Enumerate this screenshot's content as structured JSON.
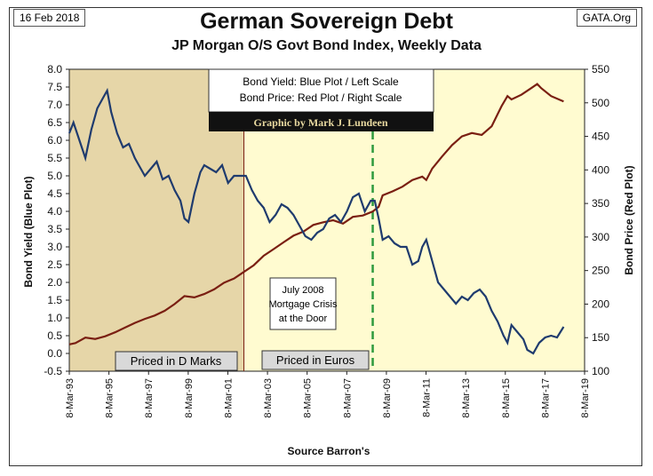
{
  "header": {
    "date": "16 Feb 2018",
    "source_tag": "GATA.Org",
    "title": "German Sovereign Debt",
    "subtitle": "JP Morgan O/S Govt Bond Index, Weekly Data"
  },
  "legend": {
    "line1": "Bond Yield: Blue Plot / Left Scale",
    "line2": "Bond Price: Red Plot / Right Scale",
    "credit": "Graphic by Mark J. Lundeen"
  },
  "annotations": {
    "crisis_line1": "July 2008",
    "crisis_line2": "Mortgage Crisis",
    "crisis_line3": "at the Door",
    "dmarks": "Priced in D Marks",
    "euros": "Priced in Euros"
  },
  "colors": {
    "dm_shade": "#e6d6a8",
    "euro_shade": "#fffbd0",
    "yield": "#1f3b6e",
    "price": "#7a1f12",
    "crisis_line": "#2e9a3e",
    "credit_bg": "#111111",
    "credit_text": "#e8d9a0"
  },
  "chart_data": {
    "type": "line",
    "title": "German Sovereign Debt",
    "subtitle": "JP Morgan O/S Govt Bond Index, Weekly Data",
    "xlabel": "Source Barron's",
    "ylabel": "Bond  Yield  (Blue Plot)",
    "y2label": "Bond  Price  (Red Plot)",
    "x_ticks": [
      "8-Mar-93",
      "8-Mar-95",
      "8-Mar-97",
      "8-Mar-99",
      "8-Mar-01",
      "8-Mar-03",
      "8-Mar-05",
      "8-Mar-07",
      "8-Mar-09",
      "8-Mar-11",
      "8-Mar-13",
      "8-Mar-15",
      "8-Mar-17",
      "8-Mar-19"
    ],
    "xlim": [
      1993.19,
      2019.19
    ],
    "ylim": [
      -0.5,
      8.0
    ],
    "y_ticks": [
      "-0.5",
      "0.0",
      "0.5",
      "1.0",
      "1.5",
      "2.0",
      "2.5",
      "3.0",
      "3.5",
      "4.0",
      "4.5",
      "5.0",
      "5.5",
      "6.0",
      "6.5",
      "7.0",
      "7.5",
      "8.0"
    ],
    "y2lim": [
      100,
      550
    ],
    "y2_ticks": [
      "100",
      "150",
      "200",
      "250",
      "300",
      "350",
      "400",
      "450",
      "500",
      "550"
    ],
    "shaded_regions": [
      {
        "name": "Priced in D Marks",
        "from": 1993.19,
        "to": 2002.0
      },
      {
        "name": "Priced in Euros",
        "from": 2002.0,
        "to": 2019.19
      }
    ],
    "vertical_markers": [
      {
        "label": "July 2008 Mortgage Crisis at the Door",
        "x": 2008.5
      }
    ],
    "grid": false,
    "series": [
      {
        "name": "Bond Yield",
        "axis": "left",
        "x": [
          1993.19,
          1993.4,
          1993.7,
          1994.0,
          1994.3,
          1994.6,
          1994.9,
          1995.1,
          1995.3,
          1995.6,
          1995.9,
          1996.2,
          1996.5,
          1996.8,
          1997.0,
          1997.3,
          1997.6,
          1997.9,
          1998.2,
          1998.5,
          1998.8,
          1999.0,
          1999.2,
          1999.5,
          1999.8,
          2000.0,
          2000.3,
          2000.6,
          2000.9,
          2001.2,
          2001.5,
          2001.8,
          2002.1,
          2002.4,
          2002.7,
          2003.0,
          2003.3,
          2003.6,
          2003.9,
          2004.2,
          2004.5,
          2004.8,
          2005.1,
          2005.4,
          2005.7,
          2006.0,
          2006.3,
          2006.6,
          2006.9,
          2007.2,
          2007.5,
          2007.8,
          2008.1,
          2008.4,
          2008.6,
          2008.8,
          2009.0,
          2009.3,
          2009.6,
          2009.9,
          2010.2,
          2010.5,
          2010.8,
          2011.0,
          2011.2,
          2011.5,
          2011.8,
          2012.1,
          2012.4,
          2012.7,
          2013.0,
          2013.3,
          2013.6,
          2013.9,
          2014.2,
          2014.5,
          2014.8,
          2015.1,
          2015.3,
          2015.5,
          2015.8,
          2016.1,
          2016.3,
          2016.6,
          2016.9,
          2017.2,
          2017.5,
          2017.8,
          2018.13
        ],
        "values": [
          6.2,
          6.5,
          6.0,
          5.5,
          6.3,
          6.9,
          7.2,
          7.4,
          6.8,
          6.2,
          5.8,
          5.9,
          5.5,
          5.2,
          5.0,
          5.2,
          5.4,
          4.9,
          5.0,
          4.6,
          4.3,
          3.8,
          3.7,
          4.5,
          5.1,
          5.3,
          5.2,
          5.1,
          5.3,
          4.8,
          5.0,
          5.0,
          5.0,
          4.6,
          4.3,
          4.1,
          3.7,
          3.9,
          4.2,
          4.1,
          3.9,
          3.6,
          3.3,
          3.2,
          3.4,
          3.5,
          3.8,
          3.9,
          3.7,
          4.0,
          4.4,
          4.5,
          4.0,
          4.3,
          4.3,
          3.8,
          3.2,
          3.3,
          3.1,
          3.0,
          3.0,
          2.5,
          2.6,
          3.0,
          3.2,
          2.6,
          2.0,
          1.8,
          1.6,
          1.4,
          1.6,
          1.5,
          1.7,
          1.8,
          1.6,
          1.2,
          0.9,
          0.5,
          0.3,
          0.8,
          0.6,
          0.4,
          0.1,
          0.0,
          0.3,
          0.45,
          0.5,
          0.45,
          0.75
        ]
      },
      {
        "name": "Bond Price",
        "axis": "right",
        "x": [
          1993.19,
          1993.5,
          1994.0,
          1994.5,
          1995.0,
          1995.5,
          1996.0,
          1996.5,
          1997.0,
          1997.5,
          1998.0,
          1998.5,
          1999.0,
          1999.5,
          2000.0,
          2000.5,
          2001.0,
          2001.5,
          2002.0,
          2002.5,
          2003.0,
          2003.5,
          2004.0,
          2004.5,
          2005.0,
          2005.5,
          2006.0,
          2006.5,
          2007.0,
          2007.5,
          2008.0,
          2008.5,
          2008.8,
          2009.0,
          2009.5,
          2010.0,
          2010.5,
          2011.0,
          2011.2,
          2011.5,
          2012.0,
          2012.5,
          2013.0,
          2013.5,
          2014.0,
          2014.5,
          2015.0,
          2015.3,
          2015.5,
          2016.0,
          2016.5,
          2016.8,
          2017.0,
          2017.5,
          2018.13
        ],
        "values": [
          140,
          142,
          150,
          148,
          152,
          158,
          165,
          172,
          178,
          183,
          190,
          200,
          212,
          210,
          215,
          222,
          232,
          238,
          248,
          258,
          272,
          282,
          292,
          302,
          308,
          318,
          322,
          325,
          320,
          330,
          332,
          338,
          345,
          362,
          368,
          375,
          385,
          390,
          385,
          402,
          420,
          437,
          450,
          455,
          452,
          465,
          495,
          510,
          505,
          512,
          522,
          528,
          522,
          510,
          502
        ]
      }
    ]
  }
}
